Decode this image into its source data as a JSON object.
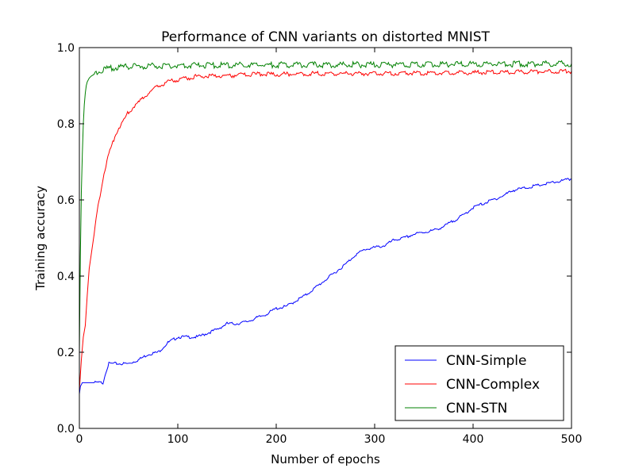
{
  "chart_data": {
    "type": "line",
    "title": "Performance of CNN variants on distorted MNIST",
    "xlabel": "Number of epochs",
    "ylabel": "Training accuracy",
    "xlim": [
      0,
      500
    ],
    "ylim": [
      0.0,
      1.0
    ],
    "xticks": [
      0,
      100,
      200,
      300,
      400,
      500
    ],
    "yticks": [
      0.0,
      0.2,
      0.4,
      0.6,
      0.8,
      1.0
    ],
    "xtick_labels": [
      "0",
      "100",
      "200",
      "300",
      "400",
      "500"
    ],
    "ytick_labels": [
      "0.0",
      "0.2",
      "0.4",
      "0.6",
      "0.8",
      "1.0"
    ],
    "grid": false,
    "legend": "lower-right",
    "series": [
      {
        "name": "CNN-Simple",
        "color": "#0000ff",
        "x": [
          0,
          1,
          3,
          5,
          10,
          15,
          20,
          24,
          25,
          27,
          30,
          35,
          40,
          50,
          60,
          70,
          80,
          90,
          100,
          110,
          120,
          130,
          140,
          150,
          160,
          170,
          180,
          190,
          200,
          210,
          220,
          230,
          240,
          250,
          260,
          270,
          280,
          290,
          300,
          310,
          320,
          330,
          340,
          350,
          360,
          370,
          380,
          390,
          400,
          410,
          420,
          430,
          440,
          450,
          460,
          470,
          480,
          490,
          500
        ],
        "y": [
          0.09,
          0.11,
          0.12,
          0.12,
          0.12,
          0.12,
          0.12,
          0.12,
          0.13,
          0.15,
          0.17,
          0.17,
          0.17,
          0.17,
          0.18,
          0.195,
          0.2,
          0.225,
          0.24,
          0.24,
          0.24,
          0.25,
          0.26,
          0.275,
          0.275,
          0.28,
          0.29,
          0.3,
          0.315,
          0.32,
          0.335,
          0.35,
          0.37,
          0.39,
          0.41,
          0.43,
          0.455,
          0.47,
          0.475,
          0.48,
          0.495,
          0.5,
          0.51,
          0.515,
          0.52,
          0.53,
          0.545,
          0.56,
          0.58,
          0.59,
          0.6,
          0.61,
          0.625,
          0.63,
          0.635,
          0.64,
          0.645,
          0.65,
          0.655
        ]
      },
      {
        "name": "CNN-Complex",
        "color": "#ff0000",
        "x": [
          0,
          2,
          4,
          6,
          8,
          10,
          15,
          20,
          25,
          30,
          35,
          40,
          45,
          50,
          55,
          60,
          70,
          80,
          90,
          100,
          110,
          120,
          140,
          160,
          180,
          200,
          250,
          300,
          350,
          400,
          450,
          500
        ],
        "y": [
          0.1,
          0.18,
          0.24,
          0.27,
          0.35,
          0.42,
          0.51,
          0.6,
          0.67,
          0.72,
          0.76,
          0.79,
          0.81,
          0.83,
          0.845,
          0.855,
          0.88,
          0.9,
          0.91,
          0.915,
          0.92,
          0.925,
          0.925,
          0.928,
          0.93,
          0.93,
          0.932,
          0.932,
          0.933,
          0.934,
          0.936,
          0.938
        ]
      },
      {
        "name": "CNN-STN",
        "color": "#008000",
        "x": [
          0,
          1,
          2,
          3,
          4,
          5,
          6,
          7,
          8,
          10,
          12,
          15,
          20,
          25,
          30,
          40,
          50,
          75,
          100,
          150,
          200,
          250,
          300,
          350,
          400,
          450,
          500
        ],
        "y": [
          0.2,
          0.45,
          0.62,
          0.72,
          0.8,
          0.85,
          0.88,
          0.9,
          0.91,
          0.92,
          0.925,
          0.93,
          0.938,
          0.942,
          0.945,
          0.948,
          0.95,
          0.952,
          0.953,
          0.954,
          0.955,
          0.955,
          0.955,
          0.956,
          0.957,
          0.957,
          0.958
        ]
      }
    ]
  }
}
